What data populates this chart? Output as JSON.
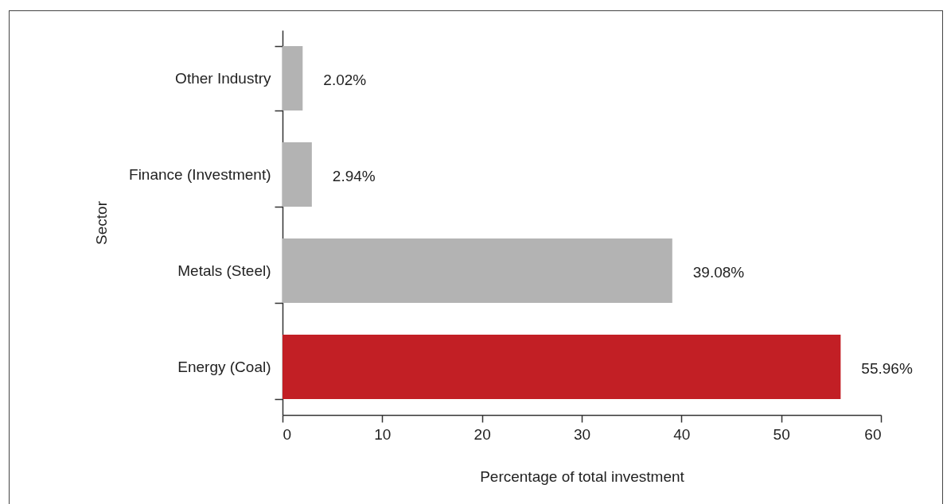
{
  "chart_data": {
    "type": "bar",
    "orientation": "horizontal",
    "xlabel": "Percentage of total investment",
    "ylabel": "Sector",
    "categories": [
      "Other Industry",
      "Finance (Investment)",
      "Metals (Steel)",
      "Energy (Coal)"
    ],
    "values": [
      2.02,
      2.94,
      39.08,
      55.96
    ],
    "colors": [
      "#b3b3b3",
      "#b3b3b3",
      "#b3b3b3",
      "#c21f25"
    ],
    "value_labels": [
      "2.02%",
      "2.94%",
      "39.08%",
      "55.96%"
    ],
    "xlim": [
      0,
      60
    ],
    "xticks": [
      0,
      10,
      20,
      30,
      40,
      50,
      60
    ],
    "grid": false
  }
}
